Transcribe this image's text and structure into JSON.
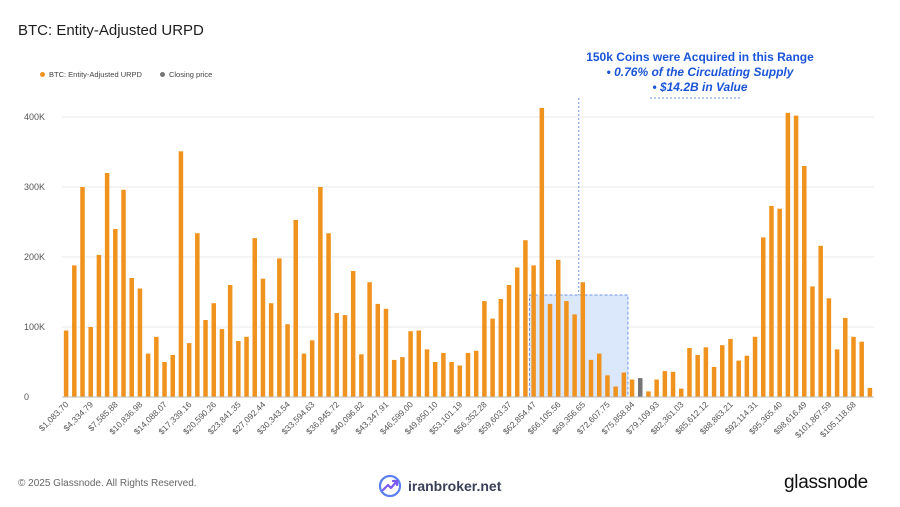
{
  "title": "BTC: Entity-Adjusted URPD",
  "legend": {
    "urpd_label": "BTC: Entity-Adjusted URPD",
    "closing_label": "Closing price",
    "urpd_color": "#f0931e",
    "closing_color": "#757575"
  },
  "annotation": {
    "heading": "150k Coins were Acquired in this Range",
    "bullet1": "•  0.76% of the Circulating Supply",
    "bullet2": "•  $14.2B in Value",
    "color": "#1a55d8"
  },
  "footer": {
    "copyright": "© 2025 Glassnode. All Rights Reserved.",
    "watermark": "iranbroker.net",
    "brand": "glassnode"
  },
  "chart_data": {
    "type": "bar",
    "x_tick_labels": [
      "$1,083.70",
      "$4,334.79",
      "$7,585.88",
      "$10,836.98",
      "$14,088.07",
      "$17,339.16",
      "$20,590.26",
      "$23,841.35",
      "$27,092.44",
      "$30,343.54",
      "$33,594.63",
      "$36,845.72",
      "$40,096.82",
      "$43,347.91",
      "$46,599.00",
      "$49,850.10",
      "$53,101.19",
      "$56,352.28",
      "$59,603.37",
      "$62,854.47",
      "$66,105.56",
      "$69,356.65",
      "$72,607.75",
      "$75,858.84",
      "$79,109.93",
      "$82,361.03",
      "$85,612.12",
      "$88,863.21",
      "$92,114.31",
      "$95,365.40",
      "$98,616.49",
      "$101,867.59",
      "$105,118.68"
    ],
    "y_ticks": [
      "0",
      "100K",
      "200K",
      "300K",
      "400K"
    ],
    "ylim": [
      0,
      430000
    ],
    "grid": true,
    "legend_position": "top-left",
    "closing_price_bin_index": 70,
    "highlight_range_bins": [
      57,
      68
    ],
    "values": [
      95000,
      188000,
      300000,
      100000,
      203000,
      320000,
      240000,
      296000,
      170000,
      155000,
      62000,
      86000,
      50000,
      60000,
      351000,
      77000,
      234000,
      110000,
      134000,
      97000,
      160000,
      80000,
      86000,
      227000,
      169000,
      134000,
      198000,
      104000,
      253000,
      62000,
      81000,
      300000,
      234000,
      120000,
      117000,
      180000,
      61000,
      164000,
      133000,
      126000,
      53000,
      57000,
      94000,
      95000,
      68000,
      50000,
      63000,
      50000,
      45000,
      63000,
      66000,
      137000,
      112000,
      140000,
      160000,
      185000,
      224000,
      188000,
      413000,
      133000,
      196000,
      137000,
      118000,
      164000,
      53000,
      62000,
      31000,
      15000,
      35000,
      25000,
      27000,
      8000,
      25000,
      37000,
      36000,
      12000,
      70000,
      60000,
      71000,
      43000,
      74000,
      83000,
      52000,
      59000,
      86000,
      228000,
      273000,
      269000,
      406000,
      402000,
      330000,
      158000,
      216000,
      141000,
      68000,
      113000,
      86000,
      79000,
      13000
    ]
  }
}
